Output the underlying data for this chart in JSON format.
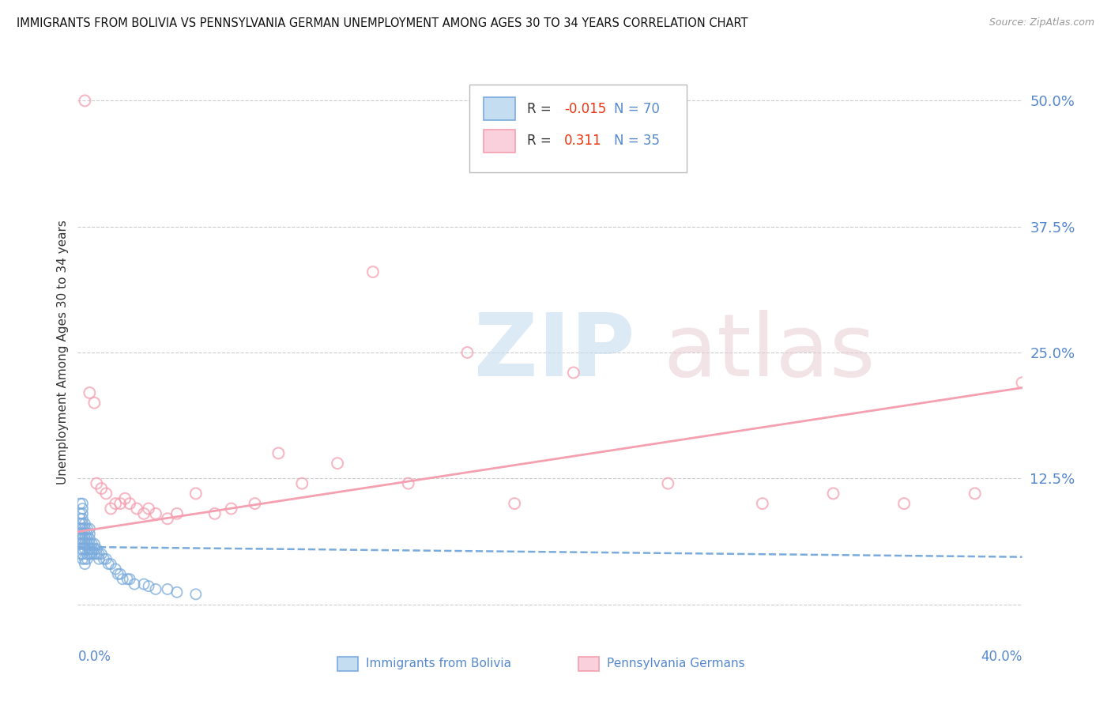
{
  "title": "IMMIGRANTS FROM BOLIVIA VS PENNSYLVANIA GERMAN UNEMPLOYMENT AMONG AGES 30 TO 34 YEARS CORRELATION CHART",
  "source": "Source: ZipAtlas.com",
  "ylabel": "Unemployment Among Ages 30 to 34 years",
  "yticks_right": [
    0.0,
    0.125,
    0.25,
    0.375,
    0.5
  ],
  "ytick_labels_right": [
    "",
    "12.5%",
    "25.0%",
    "37.5%",
    "50.0%"
  ],
  "xmin": 0.0,
  "xmax": 0.4,
  "ymin": -0.03,
  "ymax": 0.53,
  "series1_label": "Immigrants from Bolivia",
  "series1_color": "#7aabdc",
  "series1_R": -0.015,
  "series1_N": 70,
  "series2_label": "Pennsylvania Germans",
  "series2_color": "#f4a0b0",
  "series2_R": 0.311,
  "series2_N": 35,
  "watermark_zip": "ZIP",
  "watermark_atlas": "atlas",
  "background_color": "#ffffff",
  "grid_color": "#cccccc",
  "axis_label_color": "#5588cc",
  "bolivia_x": [
    0.001,
    0.001,
    0.001,
    0.001,
    0.001,
    0.001,
    0.001,
    0.001,
    0.001,
    0.001,
    0.002,
    0.002,
    0.002,
    0.002,
    0.002,
    0.002,
    0.002,
    0.002,
    0.002,
    0.002,
    0.002,
    0.002,
    0.003,
    0.003,
    0.003,
    0.003,
    0.003,
    0.003,
    0.003,
    0.003,
    0.004,
    0.004,
    0.004,
    0.004,
    0.004,
    0.004,
    0.005,
    0.005,
    0.005,
    0.005,
    0.005,
    0.005,
    0.006,
    0.006,
    0.006,
    0.007,
    0.007,
    0.007,
    0.008,
    0.008,
    0.009,
    0.009,
    0.01,
    0.011,
    0.012,
    0.013,
    0.014,
    0.016,
    0.017,
    0.018,
    0.019,
    0.021,
    0.022,
    0.024,
    0.028,
    0.03,
    0.033,
    0.038,
    0.042,
    0.05
  ],
  "bolivia_y": [
    0.05,
    0.055,
    0.06,
    0.065,
    0.07,
    0.075,
    0.08,
    0.085,
    0.09,
    0.1,
    0.045,
    0.05,
    0.055,
    0.06,
    0.065,
    0.07,
    0.075,
    0.08,
    0.085,
    0.09,
    0.095,
    0.1,
    0.04,
    0.045,
    0.055,
    0.06,
    0.065,
    0.07,
    0.075,
    0.08,
    0.045,
    0.05,
    0.06,
    0.065,
    0.07,
    0.075,
    0.05,
    0.055,
    0.06,
    0.065,
    0.07,
    0.075,
    0.05,
    0.055,
    0.06,
    0.05,
    0.055,
    0.06,
    0.05,
    0.055,
    0.045,
    0.05,
    0.05,
    0.045,
    0.045,
    0.04,
    0.04,
    0.035,
    0.03,
    0.03,
    0.025,
    0.025,
    0.025,
    0.02,
    0.02,
    0.018,
    0.015,
    0.015,
    0.012,
    0.01
  ],
  "penn_x": [
    0.003,
    0.005,
    0.007,
    0.008,
    0.01,
    0.012,
    0.014,
    0.016,
    0.018,
    0.02,
    0.022,
    0.025,
    0.028,
    0.03,
    0.033,
    0.038,
    0.042,
    0.05,
    0.058,
    0.065,
    0.075,
    0.085,
    0.095,
    0.11,
    0.125,
    0.14,
    0.165,
    0.185,
    0.21,
    0.25,
    0.29,
    0.32,
    0.35,
    0.38,
    0.4
  ],
  "penn_y": [
    0.5,
    0.21,
    0.2,
    0.12,
    0.115,
    0.11,
    0.095,
    0.1,
    0.1,
    0.105,
    0.1,
    0.095,
    0.09,
    0.095,
    0.09,
    0.085,
    0.09,
    0.11,
    0.09,
    0.095,
    0.1,
    0.15,
    0.12,
    0.14,
    0.33,
    0.12,
    0.25,
    0.1,
    0.23,
    0.12,
    0.1,
    0.11,
    0.1,
    0.11,
    0.22
  ],
  "bolivia_trend_start": 0.057,
  "bolivia_trend_end": 0.047,
  "penn_trend_start": 0.072,
  "penn_trend_end": 0.215
}
